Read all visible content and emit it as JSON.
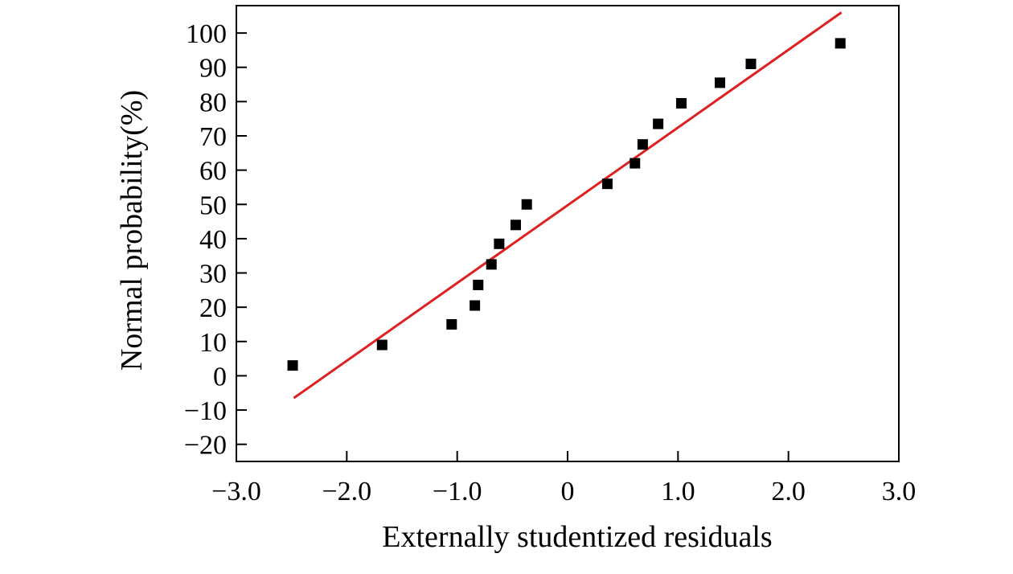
{
  "chart_data": {
    "type": "scatter",
    "title": "",
    "xlabel": "Externally studentized residuals",
    "ylabel": "Normal probability(%)",
    "xlim": [
      -3.0,
      3.0
    ],
    "ylim": [
      -25,
      108
    ],
    "x_ticks": [
      -3.0,
      -2.0,
      -1.0,
      0,
      1.0,
      2.0,
      3.0
    ],
    "x_tick_labels": [
      "−3.0",
      "−2.0",
      "−1.0",
      "0",
      "1.0",
      "2.0",
      "3.0"
    ],
    "y_ticks": [
      -20,
      -10,
      0,
      10,
      20,
      30,
      40,
      50,
      60,
      70,
      80,
      90,
      100
    ],
    "y_tick_labels": [
      "−20",
      "−10",
      "0",
      "10",
      "20",
      "30",
      "40",
      "50",
      "60",
      "70",
      "80",
      "90",
      "100"
    ],
    "grid": false,
    "legend": "none",
    "series": [
      {
        "kind": "points",
        "marker": "square",
        "color": "#000000",
        "points": [
          {
            "x": -2.49,
            "y": 3
          },
          {
            "x": -1.68,
            "y": 9
          },
          {
            "x": -1.05,
            "y": 15
          },
          {
            "x": -0.84,
            "y": 20.5
          },
          {
            "x": -0.81,
            "y": 26.5
          },
          {
            "x": -0.69,
            "y": 32.5
          },
          {
            "x": -0.62,
            "y": 38.5
          },
          {
            "x": -0.47,
            "y": 44
          },
          {
            "x": -0.37,
            "y": 50
          },
          {
            "x": 0.36,
            "y": 56
          },
          {
            "x": 0.61,
            "y": 62
          },
          {
            "x": 0.68,
            "y": 67.5
          },
          {
            "x": 0.82,
            "y": 73.5
          },
          {
            "x": 1.03,
            "y": 79.5
          },
          {
            "x": 1.38,
            "y": 85.5
          },
          {
            "x": 1.66,
            "y": 91
          },
          {
            "x": 2.47,
            "y": 97
          }
        ]
      },
      {
        "kind": "line",
        "color": "#e02020",
        "points": [
          {
            "x": -2.48,
            "y": -6.5
          },
          {
            "x": 2.48,
            "y": 106
          }
        ]
      }
    ]
  }
}
